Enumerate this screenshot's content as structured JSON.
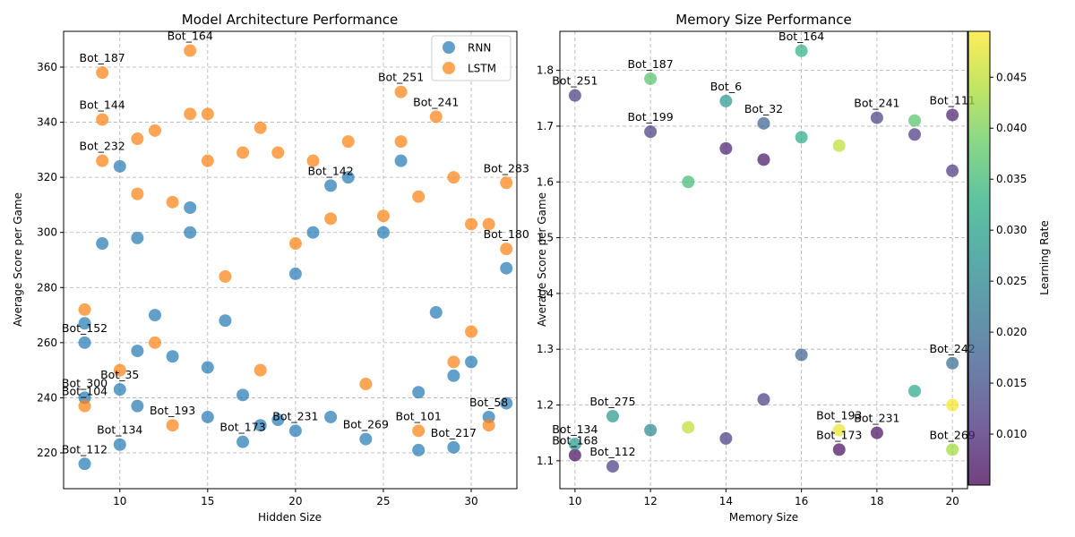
{
  "chart_data": [
    {
      "type": "scatter",
      "title": "Model Architecture Performance",
      "xlabel": "Hidden Size",
      "ylabel": "Average Score per Game",
      "xlim": [
        6.8,
        32.6
      ],
      "ylim": [
        207,
        373
      ],
      "xticks": [
        10,
        15,
        20,
        25,
        30
      ],
      "yticks": [
        220,
        240,
        260,
        280,
        300,
        320,
        340,
        360
      ],
      "grid": true,
      "legend": "top-right",
      "series": [
        {
          "name": "RNN",
          "color": "#1f77b4",
          "points": [
            {
              "x": 8,
              "y": 216,
              "label": "Bot_112"
            },
            {
              "x": 10,
              "y": 223,
              "label": "Bot_134"
            },
            {
              "x": 8,
              "y": 240,
              "label": "Bot_300"
            },
            {
              "x": 10,
              "y": 243,
              "label": "Bot_35"
            },
            {
              "x": 11,
              "y": 237,
              "label": ""
            },
            {
              "x": 8,
              "y": 260,
              "label": "Bot_152"
            },
            {
              "x": 8,
              "y": 267,
              "label": ""
            },
            {
              "x": 11,
              "y": 257,
              "label": ""
            },
            {
              "x": 9,
              "y": 296,
              "label": ""
            },
            {
              "x": 10,
              "y": 324,
              "label": ""
            },
            {
              "x": 11,
              "y": 298,
              "label": ""
            },
            {
              "x": 12,
              "y": 270,
              "label": ""
            },
            {
              "x": 13,
              "y": 255,
              "label": ""
            },
            {
              "x": 14,
              "y": 300,
              "label": ""
            },
            {
              "x": 14,
              "y": 309,
              "label": ""
            },
            {
              "x": 15,
              "y": 233,
              "label": ""
            },
            {
              "x": 15,
              "y": 251,
              "label": ""
            },
            {
              "x": 16,
              "y": 268,
              "label": ""
            },
            {
              "x": 17,
              "y": 224,
              "label": "Bot_173"
            },
            {
              "x": 17,
              "y": 241,
              "label": ""
            },
            {
              "x": 18,
              "y": 230,
              "label": ""
            },
            {
              "x": 19,
              "y": 232,
              "label": ""
            },
            {
              "x": 20,
              "y": 228,
              "label": "Bot_231"
            },
            {
              "x": 20,
              "y": 285,
              "label": ""
            },
            {
              "x": 21,
              "y": 300,
              "label": ""
            },
            {
              "x": 22,
              "y": 233,
              "label": ""
            },
            {
              "x": 22,
              "y": 317,
              "label": "Bot_142"
            },
            {
              "x": 23,
              "y": 320,
              "label": ""
            },
            {
              "x": 24,
              "y": 225,
              "label": "Bot_269"
            },
            {
              "x": 25,
              "y": 300,
              "label": ""
            },
            {
              "x": 26,
              "y": 326,
              "label": ""
            },
            {
              "x": 27,
              "y": 221,
              "label": ""
            },
            {
              "x": 27,
              "y": 242,
              "label": ""
            },
            {
              "x": 28,
              "y": 271,
              "label": ""
            },
            {
              "x": 29,
              "y": 222,
              "label": "Bot_217"
            },
            {
              "x": 29,
              "y": 248,
              "label": ""
            },
            {
              "x": 30,
              "y": 253,
              "label": ""
            },
            {
              "x": 31,
              "y": 233,
              "label": "Bot_58"
            },
            {
              "x": 32,
              "y": 238,
              "label": ""
            },
            {
              "x": 32,
              "y": 287,
              "label": ""
            }
          ]
        },
        {
          "name": "LSTM",
          "color": "#ff7f0e",
          "points": [
            {
              "x": 9,
              "y": 358,
              "label": "Bot_187"
            },
            {
              "x": 9,
              "y": 341,
              "label": "Bot_144"
            },
            {
              "x": 9,
              "y": 326,
              "label": "Bot_232"
            },
            {
              "x": 8,
              "y": 237,
              "label": "Bot_104"
            },
            {
              "x": 8,
              "y": 272,
              "label": ""
            },
            {
              "x": 10,
              "y": 250,
              "label": ""
            },
            {
              "x": 11,
              "y": 334,
              "label": ""
            },
            {
              "x": 11,
              "y": 314,
              "label": ""
            },
            {
              "x": 12,
              "y": 337,
              "label": ""
            },
            {
              "x": 12,
              "y": 260,
              "label": ""
            },
            {
              "x": 13,
              "y": 311,
              "label": ""
            },
            {
              "x": 13,
              "y": 230,
              "label": "Bot_193"
            },
            {
              "x": 14,
              "y": 366,
              "label": "Bot_164"
            },
            {
              "x": 14,
              "y": 343,
              "label": ""
            },
            {
              "x": 15,
              "y": 343,
              "label": ""
            },
            {
              "x": 15,
              "y": 326,
              "label": ""
            },
            {
              "x": 16,
              "y": 284,
              "label": ""
            },
            {
              "x": 17,
              "y": 329,
              "label": ""
            },
            {
              "x": 18,
              "y": 338,
              "label": ""
            },
            {
              "x": 18,
              "y": 250,
              "label": ""
            },
            {
              "x": 19,
              "y": 329,
              "label": ""
            },
            {
              "x": 20,
              "y": 296,
              "label": ""
            },
            {
              "x": 21,
              "y": 326,
              "label": ""
            },
            {
              "x": 22,
              "y": 305,
              "label": ""
            },
            {
              "x": 23,
              "y": 333,
              "label": ""
            },
            {
              "x": 24,
              "y": 245,
              "label": ""
            },
            {
              "x": 25,
              "y": 306,
              "label": ""
            },
            {
              "x": 26,
              "y": 351,
              "label": "Bot_251"
            },
            {
              "x": 26,
              "y": 333,
              "label": ""
            },
            {
              "x": 27,
              "y": 313,
              "label": ""
            },
            {
              "x": 27,
              "y": 228,
              "label": "Bot_101"
            },
            {
              "x": 28,
              "y": 342,
              "label": "Bot_241"
            },
            {
              "x": 29,
              "y": 320,
              "label": ""
            },
            {
              "x": 29,
              "y": 253,
              "label": ""
            },
            {
              "x": 30,
              "y": 303,
              "label": ""
            },
            {
              "x": 31,
              "y": 230,
              "label": ""
            },
            {
              "x": 31,
              "y": 303,
              "label": ""
            },
            {
              "x": 32,
              "y": 318,
              "label": "Bot_283"
            },
            {
              "x": 32,
              "y": 294,
              "label": "Bot_180"
            },
            {
              "x": 30,
              "y": 264,
              "label": ""
            }
          ]
        }
      ]
    },
    {
      "type": "scatter",
      "title": "Memory Size Performance",
      "xlabel": "Memory Size",
      "ylabel": "Average Score per Game",
      "xlim": [
        9.6,
        20.4
      ],
      "ylim": [
        1.05,
        1.87
      ],
      "xticks": [
        10,
        12,
        14,
        16,
        18,
        20
      ],
      "yticks": [
        1.1,
        1.2,
        1.3,
        1.4,
        1.5,
        1.6,
        1.7,
        1.8
      ],
      "grid": true,
      "colorbar": {
        "label": "Learning Rate",
        "min": 0.005,
        "max": 0.0495,
        "ticks": [
          0.01,
          0.015,
          0.02,
          0.025,
          0.03,
          0.035,
          0.04,
          0.045
        ]
      },
      "points": [
        {
          "x": 10,
          "y": 1.755,
          "c": 0.012,
          "label": "Bot_251"
        },
        {
          "x": 10,
          "y": 1.11,
          "c": 0.006,
          "label": "Bot_168"
        },
        {
          "x": 11,
          "y": 1.09,
          "c": 0.012,
          "label": "Bot_112"
        },
        {
          "x": 10,
          "y": 1.13,
          "c": 0.028,
          "label": "Bot_134"
        },
        {
          "x": 11,
          "y": 1.18,
          "c": 0.028,
          "label": "Bot_275"
        },
        {
          "x": 12,
          "y": 1.785,
          "c": 0.037,
          "label": "Bot_187"
        },
        {
          "x": 12,
          "y": 1.69,
          "c": 0.012,
          "label": "Bot_199"
        },
        {
          "x": 12,
          "y": 1.155,
          "c": 0.025,
          "label": ""
        },
        {
          "x": 13,
          "y": 1.6,
          "c": 0.035,
          "label": ""
        },
        {
          "x": 13,
          "y": 1.16,
          "c": 0.045,
          "label": ""
        },
        {
          "x": 14,
          "y": 1.745,
          "c": 0.028,
          "label": "Bot_6"
        },
        {
          "x": 14,
          "y": 1.66,
          "c": 0.008,
          "label": ""
        },
        {
          "x": 14,
          "y": 1.14,
          "c": 0.012,
          "label": ""
        },
        {
          "x": 15,
          "y": 1.705,
          "c": 0.018,
          "label": "Bot_32"
        },
        {
          "x": 15,
          "y": 1.64,
          "c": 0.007,
          "label": ""
        },
        {
          "x": 15,
          "y": 1.21,
          "c": 0.012,
          "label": ""
        },
        {
          "x": 16,
          "y": 1.835,
          "c": 0.033,
          "label": "Bot_164"
        },
        {
          "x": 16,
          "y": 1.68,
          "c": 0.032,
          "label": ""
        },
        {
          "x": 16,
          "y": 1.29,
          "c": 0.018,
          "label": ""
        },
        {
          "x": 17,
          "y": 1.665,
          "c": 0.045,
          "label": ""
        },
        {
          "x": 17,
          "y": 1.155,
          "c": 0.048,
          "label": "Bot_193"
        },
        {
          "x": 17,
          "y": 1.12,
          "c": 0.006,
          "label": "Bot_173"
        },
        {
          "x": 18,
          "y": 1.715,
          "c": 0.013,
          "label": "Bot_241"
        },
        {
          "x": 18,
          "y": 1.15,
          "c": 0.006,
          "label": "Bot_231"
        },
        {
          "x": 19,
          "y": 1.71,
          "c": 0.037,
          "label": ""
        },
        {
          "x": 19,
          "y": 1.685,
          "c": 0.011,
          "label": ""
        },
        {
          "x": 19,
          "y": 1.225,
          "c": 0.031,
          "label": ""
        },
        {
          "x": 20,
          "y": 1.72,
          "c": 0.008,
          "label": "Bot_111"
        },
        {
          "x": 20,
          "y": 1.62,
          "c": 0.011,
          "label": ""
        },
        {
          "x": 20,
          "y": 1.12,
          "c": 0.043,
          "label": "Bot_269"
        },
        {
          "x": 20,
          "y": 1.2,
          "c": 0.049,
          "label": ""
        },
        {
          "x": 20,
          "y": 1.275,
          "c": 0.02,
          "label": "Bot_242"
        }
      ]
    }
  ]
}
